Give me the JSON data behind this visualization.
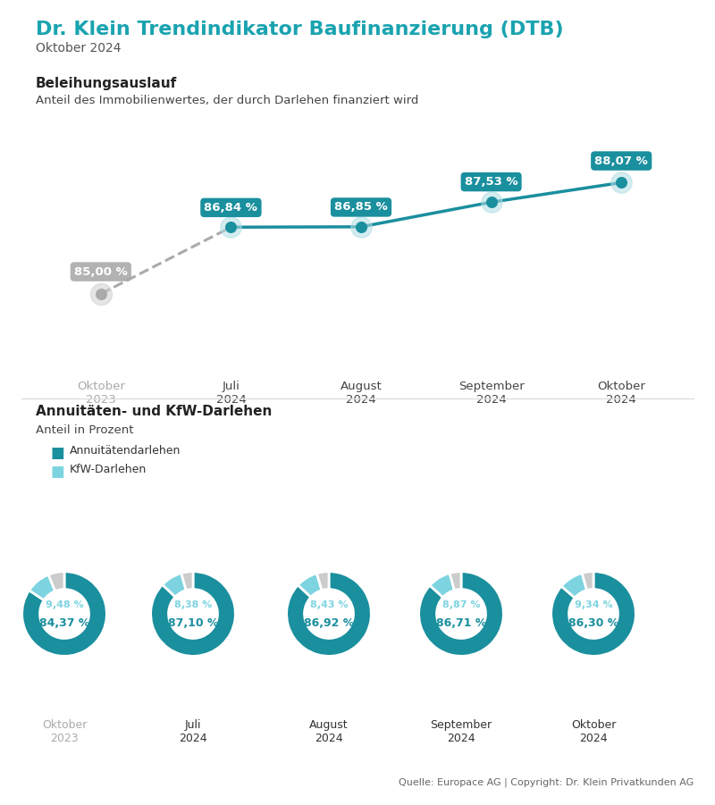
{
  "title": "Dr. Klein Trendindikator Baufinanzierung (DTB)",
  "subtitle": "Oktober 2024",
  "bg_color": "#ffffff",
  "title_color": "#1aa3b0",
  "section1_title": "Beleihungsauslauf",
  "section1_subtitle": "Anteil des Immobilienwertes, der durch Darlehen finanziert wird",
  "line_labels": [
    "Oktober\n2023",
    "Juli\n2024",
    "August\n2024",
    "September\n2024",
    "Oktober\n2024"
  ],
  "line_values": [
    85.0,
    86.84,
    86.85,
    87.53,
    88.07
  ],
  "line_value_labels": [
    "85,00 %",
    "86,84 %",
    "86,85 %",
    "87,53 %",
    "88,07 %"
  ],
  "teal_color": "#1a8f9e",
  "gray_color": "#aaaaaa",
  "light_teal_halo": "#b0dde4",
  "section2_title": "Annuitäten- und KfW-Darlehen",
  "section2_subtitle": "Anteil in Prozent",
  "legend_annuity": "Annuitätendarlehen",
  "legend_kfw": "KfW-Darlehen",
  "donut_labels": [
    "Oktober\n2023",
    "Juli\n2024",
    "August\n2024",
    "September\n2024",
    "Oktober\n2024"
  ],
  "annuity_values": [
    84.37,
    87.1,
    86.92,
    86.71,
    86.3
  ],
  "kfw_values": [
    9.48,
    8.38,
    8.43,
    8.87,
    9.34
  ],
  "annuity_labels": [
    "84,37 %",
    "87,10 %",
    "86,92 %",
    "86,71 %",
    "86,30 %"
  ],
  "kfw_labels": [
    "9,48 %",
    "8,38 %",
    "8,43 %",
    "8,87 %",
    "9,34 %"
  ],
  "footer": "Quelle: Europace AG | Copyright: Dr. Klein Privatkunden AG",
  "annuity_color": "#1a8f9e",
  "kfw_color": "#7dd4e0",
  "remainder_color": "#cccccc"
}
